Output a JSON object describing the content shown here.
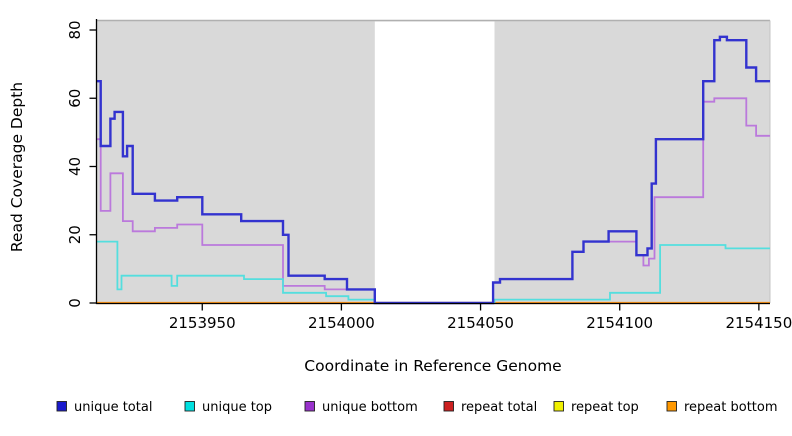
{
  "chart_data": {
    "type": "line",
    "step": true,
    "title": "",
    "xlabel": "Coordinate in Reference Genome",
    "ylabel": "Read Coverage Depth",
    "xlim": [
      2153912,
      2154154
    ],
    "ylim": [
      0,
      80
    ],
    "x_ticks": [
      2153950,
      2154000,
      2154050,
      2154100,
      2154150
    ],
    "y_ticks": [
      0,
      20,
      40,
      60,
      80
    ],
    "plot_bg": "#d9d9d9",
    "plot_border": "#b0b0b0",
    "no_data_region": [
      2154012,
      2154055
    ],
    "grid": false,
    "legend_position": "bottom",
    "series": [
      {
        "name": "unique_total",
        "label": "unique total",
        "color": "#3333cf",
        "swatch": "#1a1acd",
        "width": 2.4,
        "points": [
          [
            2153912,
            65
          ],
          [
            2153913.5,
            46
          ],
          [
            2153917,
            54
          ],
          [
            2153918.5,
            56
          ],
          [
            2153921.5,
            43
          ],
          [
            2153923,
            46
          ],
          [
            2153925,
            32
          ],
          [
            2153933,
            30
          ],
          [
            2153941,
            31
          ],
          [
            2153950,
            26
          ],
          [
            2153964,
            24
          ],
          [
            2153979,
            20
          ],
          [
            2153981,
            8
          ],
          [
            2153994,
            7
          ],
          [
            2154002,
            4
          ],
          [
            2154012,
            0
          ],
          [
            2154054.5,
            6
          ],
          [
            2154057,
            7
          ],
          [
            2154083,
            15
          ],
          [
            2154087,
            18
          ],
          [
            2154096,
            21
          ],
          [
            2154106,
            14
          ],
          [
            2154110,
            16
          ],
          [
            2154111.5,
            35
          ],
          [
            2154113,
            48
          ],
          [
            2154130,
            65
          ],
          [
            2154134,
            77
          ],
          [
            2154136,
            78
          ],
          [
            2154138.5,
            77
          ],
          [
            2154145.5,
            69
          ],
          [
            2154149,
            65
          ]
        ]
      },
      {
        "name": "unique_top",
        "label": "unique top",
        "color": "#54dede",
        "swatch": "#00e0e0",
        "width": 1.8,
        "points": [
          [
            2153912,
            18
          ],
          [
            2153919.5,
            4
          ],
          [
            2153921,
            8
          ],
          [
            2153939,
            5
          ],
          [
            2153941,
            8
          ],
          [
            2153965,
            7
          ],
          [
            2153979,
            3
          ],
          [
            2153994.5,
            2
          ],
          [
            2154002.5,
            1
          ],
          [
            2154012,
            0
          ],
          [
            2154055,
            1
          ],
          [
            2154096.5,
            3
          ],
          [
            2154114.5,
            17
          ],
          [
            2154138,
            16
          ]
        ]
      },
      {
        "name": "unique_bottom",
        "label": "unique bottom",
        "color": "#bb79dc",
        "swatch": "#9932cc",
        "width": 1.8,
        "points": [
          [
            2153912,
            48
          ],
          [
            2153913.5,
            27
          ],
          [
            2153917,
            38
          ],
          [
            2153921.5,
            24
          ],
          [
            2153925,
            21
          ],
          [
            2153933,
            22
          ],
          [
            2153941,
            23
          ],
          [
            2153950,
            17
          ],
          [
            2153979,
            5
          ],
          [
            2153994,
            4
          ],
          [
            2154012,
            0
          ],
          [
            2154054.5,
            6
          ],
          [
            2154057,
            7
          ],
          [
            2154083,
            15
          ],
          [
            2154087,
            18
          ],
          [
            2154106,
            14
          ],
          [
            2154108.5,
            11
          ],
          [
            2154110.5,
            13
          ],
          [
            2154112.5,
            31
          ],
          [
            2154130,
            59
          ],
          [
            2154134,
            60
          ],
          [
            2154145.5,
            52
          ],
          [
            2154149,
            49
          ]
        ]
      },
      {
        "name": "repeat_total",
        "label": "repeat total",
        "color": "#cc2020",
        "swatch": "#cc2020",
        "width": 1.8,
        "points": [
          [
            2153912,
            0
          ]
        ]
      },
      {
        "name": "repeat_top",
        "label": "repeat top",
        "color": "#f0f000",
        "swatch": "#f0f000",
        "width": 1.8,
        "points": [
          [
            2153912,
            0
          ]
        ]
      },
      {
        "name": "repeat_bottom",
        "label": "repeat bottom",
        "color": "#ff9514",
        "swatch": "#ff9800",
        "width": 2.2,
        "points": [
          [
            2153912,
            0
          ]
        ]
      }
    ]
  }
}
